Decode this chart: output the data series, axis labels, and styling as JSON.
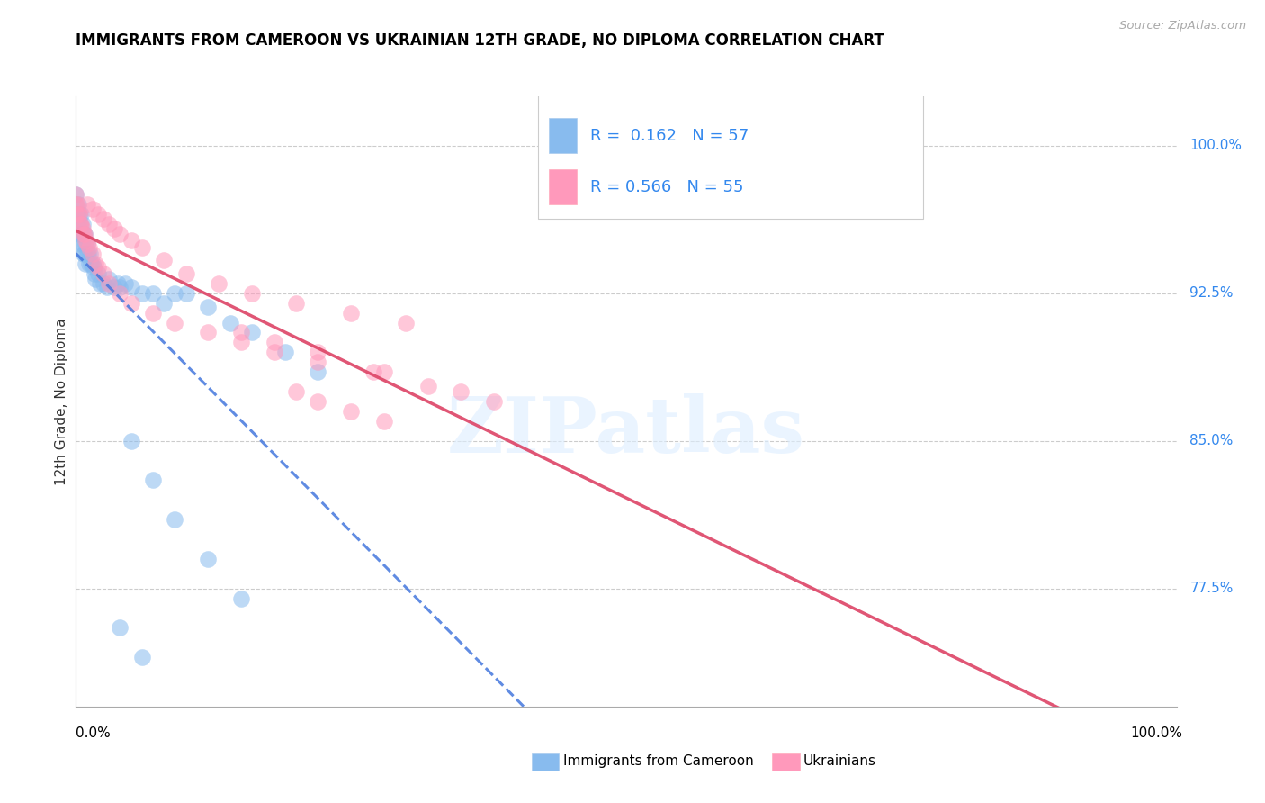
{
  "title": "IMMIGRANTS FROM CAMEROON VS UKRAINIAN 12TH GRADE, NO DIPLOMA CORRELATION CHART",
  "source": "Source: ZipAtlas.com",
  "ylabel": "12th Grade, No Diploma",
  "ytick_labels": [
    "77.5%",
    "85.0%",
    "92.5%",
    "100.0%"
  ],
  "ytick_values": [
    0.775,
    0.85,
    0.925,
    1.0
  ],
  "legend_label1": "Immigrants from Cameroon",
  "legend_label2": "Ukrainians",
  "R1": "0.162",
  "N1": "57",
  "R2": "0.566",
  "N2": "55",
  "color_cameroon": "#88bbee",
  "color_ukrainian": "#ff99bb",
  "color_line_cameroon": "#4477dd",
  "color_line_ukrainian": "#dd4466",
  "xlim": [
    0.0,
    1.0
  ],
  "ylim": [
    0.715,
    1.025
  ],
  "cameroon_x": [
    0.0,
    0.0,
    0.001,
    0.001,
    0.002,
    0.002,
    0.003,
    0.003,
    0.004,
    0.004,
    0.005,
    0.005,
    0.006,
    0.006,
    0.007,
    0.007,
    0.008,
    0.008,
    0.009,
    0.009,
    0.01,
    0.01,
    0.011,
    0.012,
    0.013,
    0.014,
    0.015,
    0.016,
    0.017,
    0.018,
    0.02,
    0.022,
    0.025,
    0.028,
    0.03,
    0.035,
    0.038,
    0.04,
    0.045,
    0.05,
    0.06,
    0.07,
    0.08,
    0.09,
    0.1,
    0.12,
    0.14,
    0.16,
    0.19,
    0.22,
    0.05,
    0.07,
    0.09,
    0.12,
    0.15,
    0.04,
    0.06
  ],
  "cameroon_y": [
    0.975,
    0.97,
    0.965,
    0.96,
    0.97,
    0.96,
    0.965,
    0.955,
    0.96,
    0.95,
    0.965,
    0.955,
    0.96,
    0.95,
    0.955,
    0.945,
    0.955,
    0.945,
    0.95,
    0.94,
    0.95,
    0.945,
    0.945,
    0.94,
    0.945,
    0.94,
    0.94,
    0.938,
    0.935,
    0.932,
    0.935,
    0.93,
    0.93,
    0.928,
    0.932,
    0.928,
    0.93,
    0.928,
    0.93,
    0.928,
    0.925,
    0.925,
    0.92,
    0.925,
    0.925,
    0.918,
    0.91,
    0.905,
    0.895,
    0.885,
    0.85,
    0.83,
    0.81,
    0.79,
    0.77,
    0.755,
    0.74
  ],
  "ukrainian_x": [
    0.0,
    0.0,
    0.0,
    0.001,
    0.002,
    0.003,
    0.004,
    0.005,
    0.006,
    0.007,
    0.008,
    0.009,
    0.01,
    0.012,
    0.015,
    0.018,
    0.02,
    0.025,
    0.03,
    0.04,
    0.05,
    0.07,
    0.09,
    0.12,
    0.15,
    0.18,
    0.22,
    0.27,
    0.32,
    0.38,
    0.01,
    0.015,
    0.02,
    0.025,
    0.03,
    0.035,
    0.04,
    0.05,
    0.06,
    0.08,
    0.1,
    0.13,
    0.16,
    0.2,
    0.25,
    0.3,
    0.2,
    0.22,
    0.25,
    0.28,
    0.15,
    0.18,
    0.22,
    0.28,
    0.35
  ],
  "ukrainian_y": [
    0.975,
    0.97,
    0.965,
    0.97,
    0.965,
    0.965,
    0.96,
    0.96,
    0.958,
    0.955,
    0.955,
    0.952,
    0.95,
    0.948,
    0.945,
    0.94,
    0.938,
    0.935,
    0.93,
    0.925,
    0.92,
    0.915,
    0.91,
    0.905,
    0.9,
    0.895,
    0.89,
    0.885,
    0.878,
    0.87,
    0.97,
    0.968,
    0.965,
    0.963,
    0.96,
    0.958,
    0.955,
    0.952,
    0.948,
    0.942,
    0.935,
    0.93,
    0.925,
    0.92,
    0.915,
    0.91,
    0.875,
    0.87,
    0.865,
    0.86,
    0.905,
    0.9,
    0.895,
    0.885,
    0.875
  ]
}
